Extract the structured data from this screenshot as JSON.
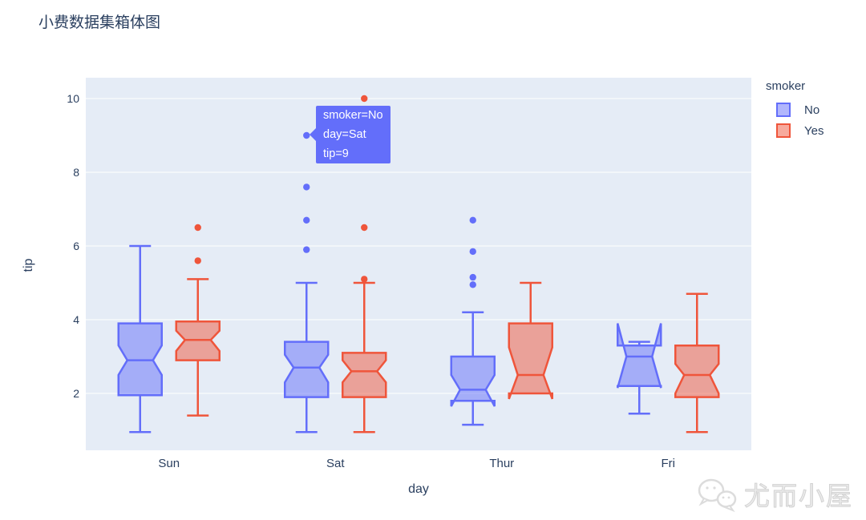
{
  "title": "小费数据集箱体图",
  "x_axis": {
    "label": "day",
    "categories": [
      "Sun",
      "Sat",
      "Thur",
      "Fri"
    ]
  },
  "y_axis": {
    "label": "tip",
    "ticks": [
      2,
      4,
      6,
      8,
      10
    ],
    "range": [
      0.45,
      10.55
    ]
  },
  "legend": {
    "title": "smoker",
    "items": [
      {
        "label": "No",
        "color": "#636efa"
      },
      {
        "label": "Yes",
        "color": "#EF553B"
      }
    ]
  },
  "tooltip": {
    "lines": [
      "smoker=No",
      "day=Sat",
      "tip=9"
    ],
    "color": "#636efa",
    "anchor": {
      "day": "Sat",
      "tip": 9
    }
  },
  "watermark": {
    "text": "尤而小屋",
    "icon": "wechat-logo"
  },
  "colors": {
    "figure_bg": "#ffffff",
    "plot_bg": "#E5ECF6",
    "grid": "#ffffff",
    "text": "#2a3f5f",
    "series_no": "#636efa",
    "series_yes": "#EF553B"
  },
  "chart_data": {
    "type": "box",
    "notched": true,
    "grouped": true,
    "title": "小费数据集箱体图",
    "xlabel": "day",
    "ylabel": "tip",
    "ylim": [
      0.45,
      10.55
    ],
    "legend_position": "right",
    "categories": [
      "Sun",
      "Sat",
      "Thur",
      "Fri"
    ],
    "series": [
      {
        "name": "No",
        "color": "#636efa",
        "boxes": [
          {
            "category": "Sun",
            "low": 0.95,
            "q1": 1.95,
            "median": 2.9,
            "q3": 3.9,
            "high": 6.0,
            "notch_low": 2.5,
            "notch_high": 3.3,
            "outliers": []
          },
          {
            "category": "Sat",
            "low": 0.95,
            "q1": 1.9,
            "median": 2.7,
            "q3": 3.4,
            "high": 5.0,
            "notch_low": 2.3,
            "notch_high": 3.05,
            "outliers": [
              9.0,
              7.6,
              6.7,
              5.9
            ]
          },
          {
            "category": "Thur",
            "low": 1.15,
            "q1": 1.8,
            "median": 2.1,
            "q3": 3.0,
            "high": 4.2,
            "notch_low": 1.65,
            "notch_high": 2.5,
            "outliers": [
              6.7,
              5.85,
              5.15,
              4.95
            ]
          },
          {
            "category": "Fri",
            "low": 1.45,
            "q1": 2.2,
            "median": 3.0,
            "q3": 3.3,
            "high": 3.4,
            "notch_low": 2.15,
            "notch_high": 3.9,
            "outliers": []
          }
        ]
      },
      {
        "name": "Yes",
        "color": "#EF553B",
        "boxes": [
          {
            "category": "Sun",
            "low": 1.4,
            "q1": 2.9,
            "median": 3.45,
            "q3": 3.95,
            "high": 5.1,
            "notch_low": 3.15,
            "notch_high": 3.7,
            "outliers": [
              6.5,
              5.6
            ]
          },
          {
            "category": "Sat",
            "low": 0.95,
            "q1": 1.9,
            "median": 2.6,
            "q3": 3.1,
            "high": 5.0,
            "notch_low": 2.3,
            "notch_high": 2.9,
            "outliers": [
              10.0,
              6.5,
              5.1
            ]
          },
          {
            "category": "Thur",
            "low": 2.0,
            "q1": 2.0,
            "median": 2.5,
            "q3": 3.9,
            "high": 5.0,
            "notch_low": 1.85,
            "notch_high": 3.25,
            "outliers": []
          },
          {
            "category": "Fri",
            "low": 0.95,
            "q1": 1.9,
            "median": 2.5,
            "q3": 3.3,
            "high": 4.7,
            "notch_low": 2.0,
            "notch_high": 2.8,
            "outliers": []
          }
        ]
      }
    ]
  }
}
